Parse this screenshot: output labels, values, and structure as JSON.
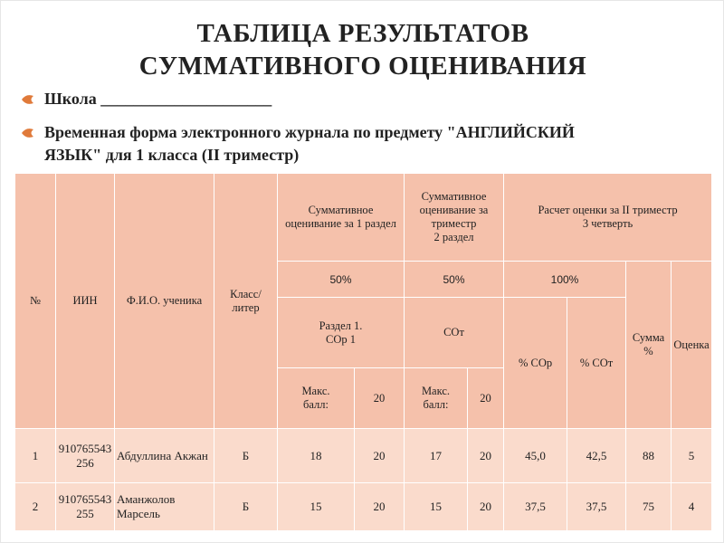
{
  "title": [
    "ТАБЛИЦА РЕЗУЛЬТАТОВ",
    "СУММАТИВНОГО ОЦЕНИВАНИЯ"
  ],
  "bullets": [
    "Школа _____________________",
    "Временная форма электронного журнала по предмету \"АНГЛИЙСКИЙ ЯЗЫК\" для 1 класса (II триместр)"
  ],
  "table": {
    "head": [
      [
        "№",
        "ИИН",
        "Ф.И.О. ученика",
        "Класс/ литер",
        "Суммативное оценивание за 1 раздел",
        "Суммативное оценивание за триместр\n2 раздел",
        "Расчет оценки за II триместр\n3 четверть"
      ],
      [
        "50%",
        "50%",
        "100%",
        "Сумма %",
        "Оценка"
      ],
      [
        "Раздел 1.\nСОр 1",
        "СОт",
        "% СОр",
        "% СОт"
      ],
      [
        "Макс.\nбалл:",
        "20",
        "Макс.\nбалл:",
        "20"
      ]
    ],
    "rows": [
      [
        "1",
        "910765543256",
        "Абдуллина Акжан",
        "Б",
        "18",
        "20",
        "17",
        "20",
        "45,0",
        "42,5",
        "88",
        "5"
      ],
      [
        "2",
        "910765543255",
        "Аманжолов Марсель",
        "Б",
        "15",
        "20",
        "15",
        "20",
        "37,5",
        "37,5",
        "75",
        "4"
      ]
    ]
  }
}
